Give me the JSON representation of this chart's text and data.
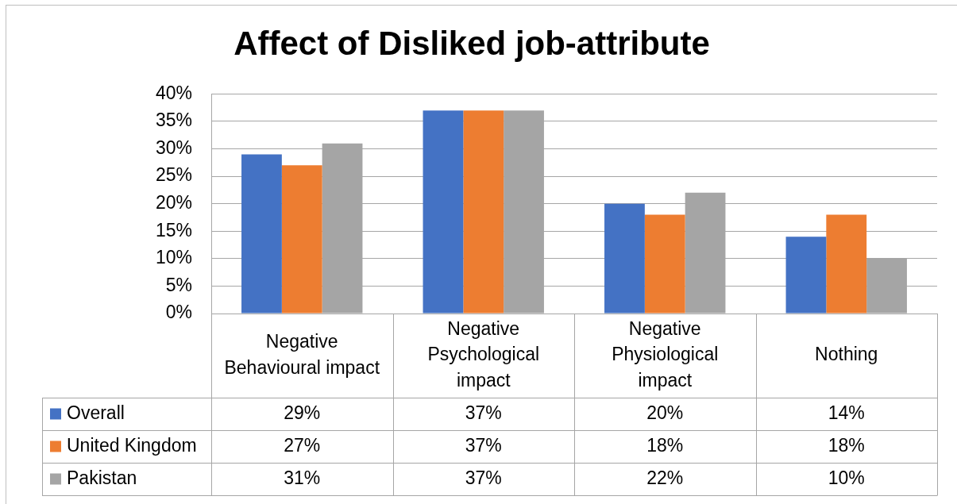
{
  "chart_data": {
    "type": "bar",
    "title": "Affect of Disliked job-attribute",
    "categories": [
      "Negative Behavioural impact",
      "Negative Psychological impact",
      "Negative Physiological impact",
      "Nothing"
    ],
    "series": [
      {
        "name": "Overall",
        "color": "#4472c4",
        "values": [
          29,
          37,
          20,
          14
        ],
        "value_labels": [
          "29%",
          "37%",
          "20%",
          "14%"
        ]
      },
      {
        "name": "United Kingdom",
        "color": "#ed7d31",
        "values": [
          27,
          37,
          18,
          18
        ],
        "value_labels": [
          "27%",
          "37%",
          "18%",
          "18%"
        ]
      },
      {
        "name": "Pakistan",
        "color": "#a5a5a5",
        "values": [
          31,
          37,
          22,
          10
        ],
        "value_labels": [
          "31%",
          "37%",
          "22%",
          "10%"
        ]
      }
    ],
    "ylim": [
      0,
      40
    ],
    "yticks": [
      {
        "value": 0,
        "label": "0%"
      },
      {
        "value": 5,
        "label": "5%"
      },
      {
        "value": 10,
        "label": "10%"
      },
      {
        "value": 15,
        "label": "15%"
      },
      {
        "value": 20,
        "label": "20%"
      },
      {
        "value": 25,
        "label": "25%"
      },
      {
        "value": 30,
        "label": "30%"
      },
      {
        "value": 35,
        "label": "35%"
      },
      {
        "value": 40,
        "label": "40%"
      }
    ],
    "grid": "y",
    "legend": "bottom"
  }
}
